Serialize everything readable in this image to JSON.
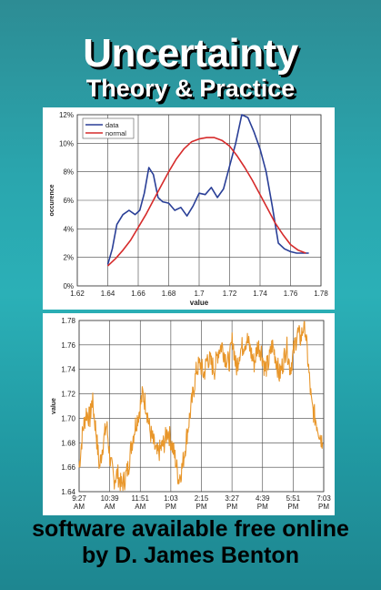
{
  "cover": {
    "title": "Uncertainty",
    "subtitle": "Theory & Practice",
    "footer_line1": "software available free online",
    "footer_line2": "by D. James Benton",
    "background_color": "#2aa6ae"
  },
  "chart_data": [
    {
      "type": "line",
      "xlabel": "value",
      "ylabel": "occurence",
      "xlim": [
        1.62,
        1.78
      ],
      "ylim": [
        0,
        12
      ],
      "x_ticks": [
        "1.62",
        "1.64",
        "1.66",
        "1.68",
        "1.7",
        "1.72",
        "1.74",
        "1.76",
        "1.78"
      ],
      "y_ticks": [
        "0%",
        "2%",
        "4%",
        "6%",
        "8%",
        "10%",
        "12%"
      ],
      "grid": true,
      "legend": "top-left",
      "series": [
        {
          "name": "data",
          "color": "#2a3f97",
          "x": [
            1.64,
            1.643,
            1.646,
            1.65,
            1.654,
            1.658,
            1.661,
            1.664,
            1.667,
            1.67,
            1.673,
            1.676,
            1.68,
            1.684,
            1.688,
            1.692,
            1.696,
            1.7,
            1.704,
            1.708,
            1.712,
            1.716,
            1.72,
            1.724,
            1.728,
            1.732,
            1.736,
            1.74,
            1.744,
            1.748,
            1.752,
            1.756,
            1.76,
            1.764,
            1.768,
            1.772
          ],
          "y": [
            1.5,
            2.6,
            4.3,
            5.0,
            5.3,
            5.0,
            5.3,
            6.5,
            8.3,
            7.8,
            6.2,
            5.9,
            5.8,
            5.3,
            5.5,
            4.9,
            5.6,
            6.5,
            6.4,
            6.9,
            6.2,
            6.8,
            8.4,
            10.0,
            12.0,
            11.8,
            10.8,
            9.6,
            8.0,
            5.6,
            3.0,
            2.6,
            2.4,
            2.3,
            2.3,
            2.3
          ]
        },
        {
          "name": "normal",
          "color": "#d62b2b",
          "x": [
            1.64,
            1.645,
            1.65,
            1.655,
            1.66,
            1.665,
            1.67,
            1.675,
            1.68,
            1.685,
            1.69,
            1.695,
            1.7,
            1.705,
            1.71,
            1.715,
            1.72,
            1.725,
            1.73,
            1.735,
            1.74,
            1.745,
            1.75,
            1.755,
            1.76,
            1.765,
            1.77
          ],
          "y": [
            1.4,
            1.9,
            2.5,
            3.2,
            4.1,
            5.0,
            6.0,
            7.0,
            8.0,
            8.9,
            9.6,
            10.1,
            10.3,
            10.4,
            10.4,
            10.2,
            9.8,
            9.1,
            8.3,
            7.4,
            6.4,
            5.4,
            4.4,
            3.6,
            2.9,
            2.5,
            2.3
          ]
        }
      ]
    },
    {
      "type": "line",
      "xlabel": "",
      "ylabel": "value",
      "xlim": [
        0,
        10.2
      ],
      "ylim": [
        1.64,
        1.78
      ],
      "x_ticks": [
        "9:27 AM",
        "10:39 AM",
        "11:51 AM",
        "1:03 PM",
        "2:15 PM",
        "3:27 PM",
        "4:39 PM",
        "5:51 PM",
        "7:03 PM"
      ],
      "y_ticks": [
        "1.64",
        "1.66",
        "1.68",
        "1.70",
        "1.72",
        "1.74",
        "1.76",
        "1.78"
      ],
      "grid": true,
      "series": [
        {
          "color": "#e8962a",
          "x": [
            0.0,
            0.15,
            0.3,
            0.45,
            0.55,
            0.7,
            0.85,
            1.0,
            1.15,
            1.3,
            1.45,
            1.6,
            1.75,
            1.9,
            2.05,
            2.2,
            2.35,
            2.5,
            2.65,
            2.8,
            2.95,
            3.1,
            3.25,
            3.4,
            3.55,
            3.7,
            3.85,
            4.0,
            4.15,
            4.3,
            4.45,
            4.6,
            4.75,
            4.9,
            5.05,
            5.2,
            5.35,
            5.5,
            5.65,
            5.8,
            5.95,
            6.1,
            6.25,
            6.4,
            6.55,
            6.7,
            6.85,
            7.0,
            7.15,
            7.3,
            7.45,
            7.6,
            7.75,
            7.9,
            8.05,
            8.2,
            8.35,
            8.5,
            8.65,
            8.8,
            8.95,
            9.1,
            9.25,
            9.4,
            9.55,
            9.7,
            9.85,
            10.0,
            10.15
          ],
          "y": [
            1.66,
            1.69,
            1.705,
            1.7,
            1.715,
            1.69,
            1.66,
            1.68,
            1.695,
            1.665,
            1.65,
            1.655,
            1.645,
            1.65,
            1.66,
            1.68,
            1.695,
            1.705,
            1.72,
            1.71,
            1.69,
            1.68,
            1.67,
            1.675,
            1.68,
            1.69,
            1.68,
            1.668,
            1.65,
            1.66,
            1.68,
            1.7,
            1.72,
            1.74,
            1.745,
            1.735,
            1.75,
            1.745,
            1.74,
            1.755,
            1.76,
            1.75,
            1.745,
            1.765,
            1.74,
            1.755,
            1.76,
            1.765,
            1.755,
            1.745,
            1.76,
            1.755,
            1.74,
            1.745,
            1.76,
            1.75,
            1.735,
            1.745,
            1.76,
            1.74,
            1.755,
            1.77,
            1.765,
            1.78,
            1.745,
            1.71,
            1.7,
            1.69,
            1.68
          ]
        }
      ]
    }
  ]
}
